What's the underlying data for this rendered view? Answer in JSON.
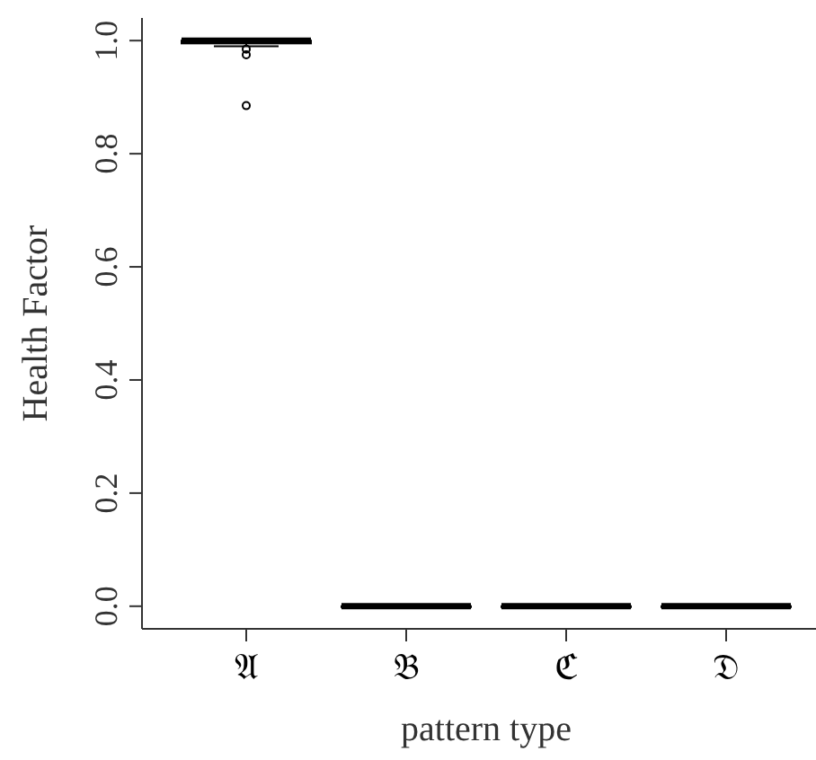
{
  "chart_data": {
    "type": "box",
    "xlabel": "pattern type",
    "ylabel": "Health Factor",
    "categories": [
      "𝔄",
      "𝔅",
      "ℭ",
      "𝔇"
    ],
    "boxes": [
      {
        "low": 0.99,
        "q1": 0.995,
        "median": 1.0,
        "q3": 1.0,
        "high": 1.0,
        "outliers": [
          0.985,
          0.975,
          0.885
        ]
      },
      {
        "low": 0.0,
        "q1": 0.0,
        "median": 0.0,
        "q3": 0.0,
        "high": 0.0
      },
      {
        "low": 0.0,
        "q1": 0.0,
        "median": 0.0,
        "q3": 0.0,
        "high": 0.0
      },
      {
        "low": 0.0,
        "q1": 0.0,
        "median": 0.0,
        "q3": 0.0,
        "high": 0.0
      }
    ],
    "ylim": [
      -0.04,
      1.04
    ],
    "yticks": [
      {
        "value": 0,
        "label": "0.0"
      },
      0.2,
      0.4,
      0.6,
      0.8,
      {
        "value": 1,
        "label": "1.0"
      }
    ]
  }
}
